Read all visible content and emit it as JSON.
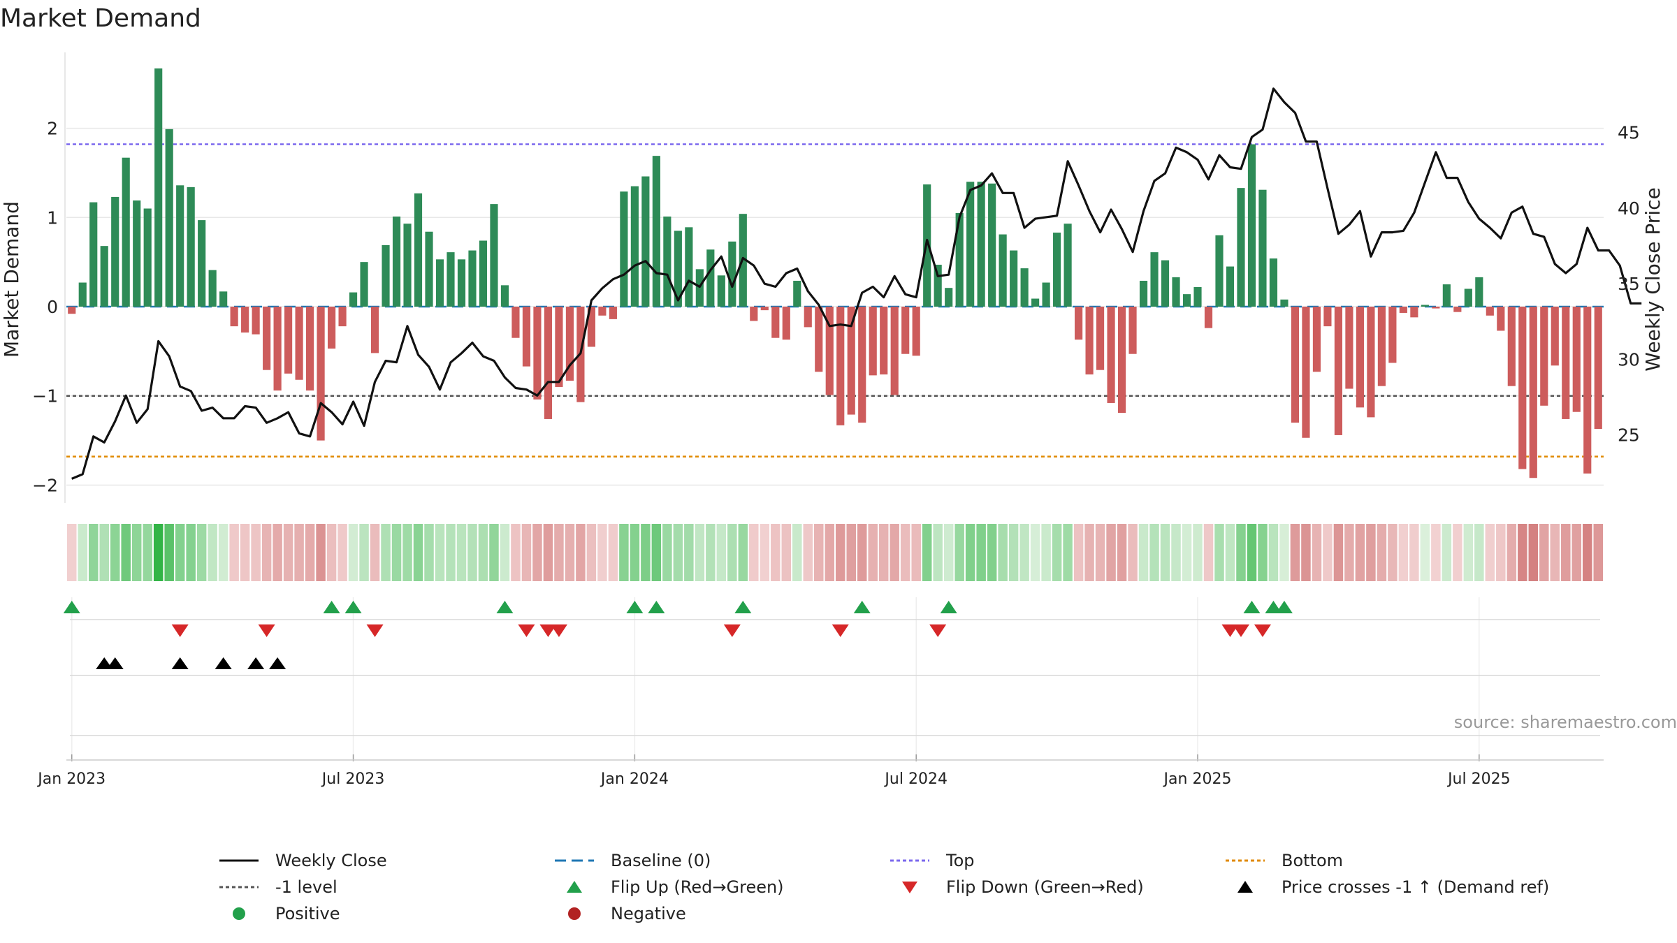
{
  "chart_data": {
    "type": "bar",
    "title": "Market Demand",
    "ylabel": "Market Demand",
    "y2label": "Weekly Close Price",
    "ylim": [
      -2.2,
      2.85
    ],
    "y2lim": [
      20.5,
      50.3
    ],
    "yticks": [
      -2,
      -1,
      0,
      1,
      2
    ],
    "ytick_labels": [
      "−2",
      "−1",
      "0",
      "1",
      "2"
    ],
    "y2ticks": [
      25,
      30,
      35,
      40,
      45
    ],
    "xtick_positions": [
      0,
      26,
      52,
      78,
      104,
      130
    ],
    "xtick_labels": [
      "Jan 2023",
      "Jul 2023",
      "Jan 2024",
      "Jul 2024",
      "Jan 2025",
      "Jul 2025"
    ],
    "reference_lines": {
      "baseline": 0,
      "minus_one": -1,
      "top": 1.82,
      "bottom": -1.68
    },
    "colors": {
      "positive": "#2e8b57",
      "negative": "#cd5c5c",
      "close": "#111111",
      "baseline": "#1f77b4",
      "top": "#7b68ee",
      "bottom": "#e08a00",
      "flip_up": "#22a04b",
      "flip_down": "#d62728",
      "cross": "#000000"
    },
    "demand": [
      -0.08,
      0.27,
      1.17,
      0.68,
      1.23,
      1.67,
      1.19,
      1.1,
      2.67,
      1.99,
      1.36,
      1.34,
      0.97,
      0.41,
      0.17,
      -0.22,
      -0.29,
      -0.31,
      -0.71,
      -0.94,
      -0.75,
      -0.82,
      -0.94,
      -1.5,
      -0.47,
      -0.22,
      0.16,
      0.5,
      -0.52,
      0.69,
      1.01,
      0.93,
      1.27,
      0.84,
      0.53,
      0.61,
      0.53,
      0.63,
      0.74,
      1.15,
      0.24,
      -0.35,
      -0.67,
      -1.04,
      -1.26,
      -0.9,
      -0.83,
      -1.07,
      -0.45,
      -0.1,
      -0.14,
      1.29,
      1.35,
      1.46,
      1.69,
      1.01,
      0.85,
      0.89,
      0.42,
      0.64,
      0.35,
      0.73,
      1.04,
      -0.16,
      -0.04,
      -0.35,
      -0.37,
      0.29,
      -0.23,
      -0.73,
      -0.99,
      -1.33,
      -1.21,
      -1.3,
      -0.77,
      -0.76,
      -0.99,
      -0.53,
      -0.55,
      1.37,
      0.47,
      0.21,
      1.05,
      1.4,
      1.4,
      1.38,
      0.81,
      0.63,
      0.43,
      0.09,
      0.27,
      0.83,
      0.93,
      -0.37,
      -0.76,
      -0.71,
      -1.08,
      -1.19,
      -0.53,
      0.29,
      0.61,
      0.52,
      0.33,
      0.14,
      0.22,
      -0.24,
      0.8,
      0.45,
      1.33,
      1.82,
      1.31,
      0.54,
      0.08,
      -1.3,
      -1.47,
      -0.73,
      -0.22,
      -1.44,
      -0.92,
      -1.13,
      -1.24,
      -0.89,
      -0.63,
      -0.07,
      -0.12,
      0.02,
      -0.02,
      0.25,
      -0.06,
      0.2,
      0.33,
      -0.1,
      -0.27,
      -0.89,
      -1.82,
      -1.92,
      -1.11,
      -0.66,
      -1.26,
      -1.18,
      -1.87,
      -1.37
    ],
    "close": [
      22.1,
      22.4,
      24.9,
      24.5,
      25.9,
      27.6,
      25.8,
      26.7,
      31.2,
      30.2,
      28.2,
      27.9,
      26.6,
      26.8,
      26.1,
      26.1,
      26.9,
      26.8,
      25.8,
      26.1,
      26.5,
      25.1,
      24.9,
      27.1,
      26.5,
      25.7,
      27.2,
      25.6,
      28.5,
      29.9,
      29.8,
      32.2,
      30.3,
      29.5,
      28.0,
      29.8,
      30.4,
      31.1,
      30.2,
      29.9,
      28.8,
      28.1,
      28.0,
      27.6,
      28.5,
      28.5,
      29.6,
      30.4,
      33.9,
      34.7,
      35.3,
      35.6,
      36.2,
      36.5,
      35.7,
      35.6,
      33.9,
      35.2,
      34.8,
      35.9,
      36.8,
      34.8,
      36.7,
      36.2,
      35.0,
      34.8,
      35.7,
      36.0,
      34.5,
      33.6,
      32.2,
      32.3,
      32.2,
      34.4,
      34.8,
      34.1,
      35.5,
      34.3,
      34.1,
      37.9,
      35.5,
      35.6,
      39.4,
      41.2,
      41.5,
      42.3,
      41.0,
      41.0,
      38.7,
      39.3,
      39.4,
      39.5,
      43.1,
      41.5,
      39.8,
      38.4,
      39.9,
      38.6,
      37.1,
      39.8,
      41.8,
      42.3,
      44.0,
      43.7,
      43.2,
      41.9,
      43.5,
      42.7,
      42.6,
      44.7,
      45.2,
      47.9,
      47.0,
      46.3,
      44.4,
      44.4,
      41.3,
      38.3,
      38.9,
      39.8,
      36.8,
      38.4,
      38.4,
      38.5,
      39.7,
      41.7,
      43.7,
      42.0,
      42.0,
      40.4,
      39.3,
      38.7,
      38.0,
      39.7,
      40.1,
      38.3,
      38.1,
      36.3,
      35.7,
      36.3,
      38.7,
      37.2,
      37.2,
      36.2,
      33.7,
      33.7
    ],
    "flip_up_weeks": [
      0,
      24,
      26,
      40,
      52,
      54,
      62,
      73,
      81,
      109,
      111,
      112
    ],
    "flip_down_weeks": [
      10,
      18,
      28,
      42,
      44,
      45,
      61,
      71,
      80,
      107,
      108,
      110
    ],
    "price_crosses_weeks": [
      3,
      4,
      10,
      14,
      17,
      19
    ]
  },
  "legend": {
    "weekly_close": "Weekly Close",
    "baseline": "Baseline (0)",
    "top": "Top",
    "bottom": "Bottom",
    "minus_one": "-1 level",
    "flip_up": "Flip Up (Red→Green)",
    "flip_down": "Flip Down (Green→Red)",
    "price_cross": "Price crosses -1 ↑ (Demand ref)",
    "positive": "Positive",
    "negative": "Negative"
  },
  "source": "source: sharemaestro.com"
}
